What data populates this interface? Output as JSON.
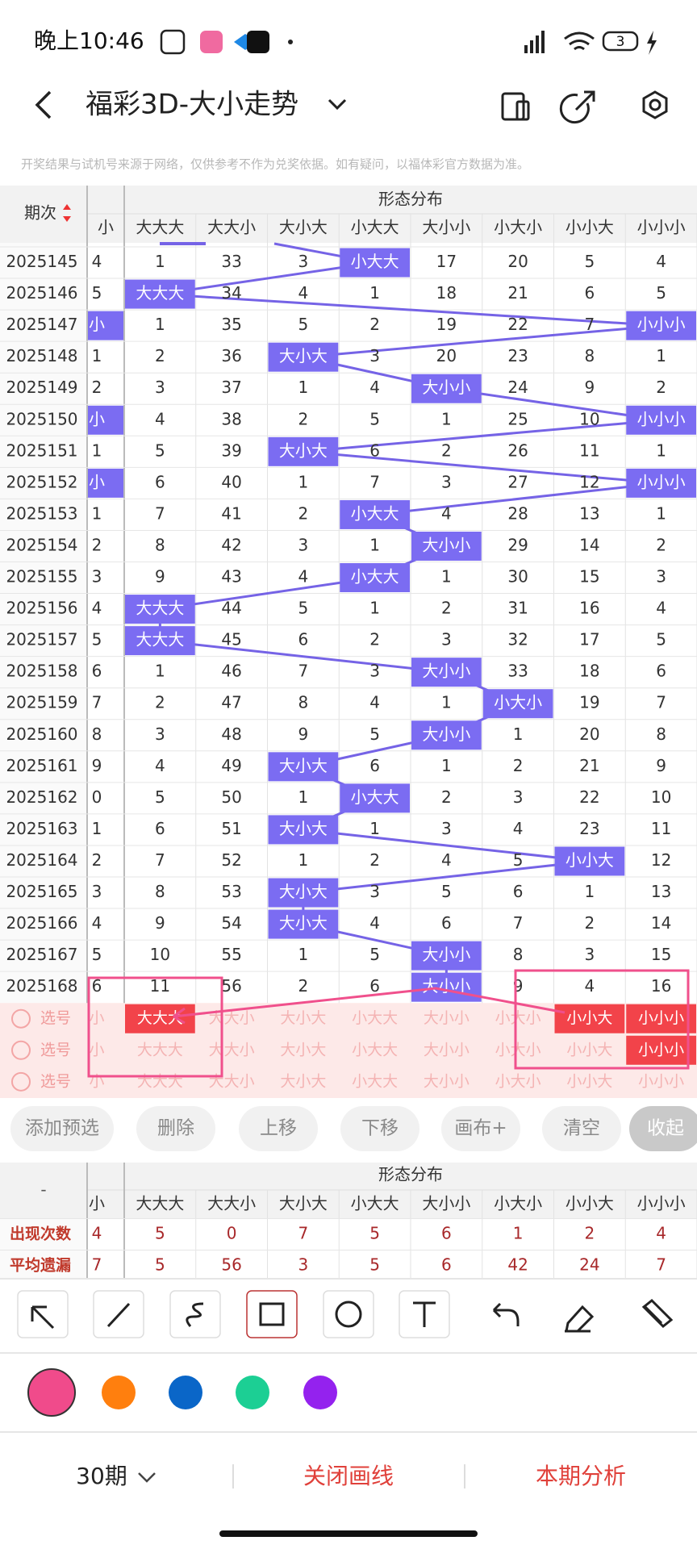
{
  "status_bar": {
    "time": "晚上10:46",
    "battery": "3"
  },
  "header": {
    "title": "福彩3D-大小走势"
  },
  "notice": "开奖结果与试机号来源于网络，仅供参考不作为兑奖依据。如有疑问，以福体彩官方数据为准。",
  "table": {
    "period_header": "期次",
    "group_header": "形态分布",
    "columns": [
      "小",
      "大大大",
      "大大小",
      "大小大",
      "小大大",
      "大小小",
      "小大小",
      "小小大",
      "小小小"
    ],
    "rows": [
      {
        "period": "2025145",
        "cells": [
          "4",
          "1",
          "33",
          "3",
          "小大大",
          "17",
          "20",
          "5",
          "4"
        ]
      },
      {
        "period": "2025146",
        "cells": [
          "5",
          "大大大",
          "34",
          "4",
          "1",
          "18",
          "21",
          "6",
          "5"
        ]
      },
      {
        "period": "2025147",
        "cells": [
          "小",
          "1",
          "35",
          "5",
          "2",
          "19",
          "22",
          "7",
          "小小小"
        ]
      },
      {
        "period": "2025148",
        "cells": [
          "1",
          "2",
          "36",
          "大小大",
          "3",
          "20",
          "23",
          "8",
          "1"
        ]
      },
      {
        "period": "2025149",
        "cells": [
          "2",
          "3",
          "37",
          "1",
          "4",
          "大小小",
          "24",
          "9",
          "2"
        ]
      },
      {
        "period": "2025150",
        "cells": [
          "小",
          "4",
          "38",
          "2",
          "5",
          "1",
          "25",
          "10",
          "小小小"
        ]
      },
      {
        "period": "2025151",
        "cells": [
          "1",
          "5",
          "39",
          "大小大",
          "6",
          "2",
          "26",
          "11",
          "1"
        ]
      },
      {
        "period": "2025152",
        "cells": [
          "小",
          "6",
          "40",
          "1",
          "7",
          "3",
          "27",
          "12",
          "小小小"
        ]
      },
      {
        "period": "2025153",
        "cells": [
          "1",
          "7",
          "41",
          "2",
          "小大大",
          "4",
          "28",
          "13",
          "1"
        ]
      },
      {
        "period": "2025154",
        "cells": [
          "2",
          "8",
          "42",
          "3",
          "1",
          "大小小",
          "29",
          "14",
          "2"
        ]
      },
      {
        "period": "2025155",
        "cells": [
          "3",
          "9",
          "43",
          "4",
          "小大大",
          "1",
          "30",
          "15",
          "3"
        ]
      },
      {
        "period": "2025156",
        "cells": [
          "4",
          "大大大",
          "44",
          "5",
          "1",
          "2",
          "31",
          "16",
          "4"
        ]
      },
      {
        "period": "2025157",
        "cells": [
          "5",
          "大大大",
          "45",
          "6",
          "2",
          "3",
          "32",
          "17",
          "5"
        ]
      },
      {
        "period": "2025158",
        "cells": [
          "6",
          "1",
          "46",
          "7",
          "3",
          "大小小",
          "33",
          "18",
          "6"
        ]
      },
      {
        "period": "2025159",
        "cells": [
          "7",
          "2",
          "47",
          "8",
          "4",
          "1",
          "小大小",
          "19",
          "7"
        ]
      },
      {
        "period": "2025160",
        "cells": [
          "8",
          "3",
          "48",
          "9",
          "5",
          "大小小",
          "1",
          "20",
          "8"
        ]
      },
      {
        "period": "2025161",
        "cells": [
          "9",
          "4",
          "49",
          "大小大",
          "6",
          "1",
          "2",
          "21",
          "9"
        ]
      },
      {
        "period": "2025162",
        "cells": [
          "0",
          "5",
          "50",
          "1",
          "小大大",
          "2",
          "3",
          "22",
          "10"
        ]
      },
      {
        "period": "2025163",
        "cells": [
          "1",
          "6",
          "51",
          "大小大",
          "1",
          "3",
          "4",
          "23",
          "11"
        ]
      },
      {
        "period": "2025164",
        "cells": [
          "2",
          "7",
          "52",
          "1",
          "2",
          "4",
          "5",
          "小小大",
          "12"
        ]
      },
      {
        "period": "2025165",
        "cells": [
          "3",
          "8",
          "53",
          "大小大",
          "3",
          "5",
          "6",
          "1",
          "13"
        ]
      },
      {
        "period": "2025166",
        "cells": [
          "4",
          "9",
          "54",
          "大小大",
          "4",
          "6",
          "7",
          "2",
          "14"
        ]
      },
      {
        "period": "2025167",
        "cells": [
          "5",
          "10",
          "55",
          "1",
          "5",
          "大小小",
          "8",
          "3",
          "15"
        ]
      },
      {
        "period": "2025168",
        "cells": [
          "6",
          "11",
          "56",
          "2",
          "6",
          "大小小",
          "9",
          "4",
          "16"
        ]
      }
    ],
    "select_rows": [
      {
        "label": "选号",
        "cells": [
          "小",
          "大大大",
          "大大小",
          "大小大",
          "小大大",
          "大小小",
          "小大小",
          "小小大",
          "小小小"
        ],
        "selected": [
          1,
          7,
          8
        ]
      },
      {
        "label": "选号",
        "cells": [
          "小",
          "大大大",
          "大大小",
          "大小大",
          "小大大",
          "大小小",
          "小大小",
          "小小大",
          "小小小"
        ],
        "selected": [
          8
        ]
      },
      {
        "label": "选号",
        "cells": [
          "小",
          "大大大",
          "大大小",
          "大小大",
          "小大大",
          "大小小",
          "小大小",
          "小小大",
          "小小小"
        ]
      }
    ]
  },
  "actions": [
    "添加预选",
    "删除",
    "上移",
    "下移",
    "画布+",
    "清空",
    "收起"
  ],
  "summary": {
    "corner": "-",
    "group_header": "形态分布",
    "columns": [
      "小",
      "大大大",
      "大大小",
      "大小大",
      "小大大",
      "大小小",
      "小大小",
      "小小大",
      "小小小"
    ],
    "rows": [
      {
        "label": "出现次数",
        "cells": [
          "4",
          "5",
          "0",
          "7",
          "5",
          "6",
          "1",
          "2",
          "4"
        ]
      },
      {
        "label": "平均遗漏",
        "cells": [
          "7",
          "5",
          "56",
          "3",
          "5",
          "6",
          "42",
          "24",
          "7"
        ]
      }
    ]
  },
  "footer": {
    "period_select": "30期",
    "close_lines": "关闭画线",
    "analysis": "本期分析"
  }
}
